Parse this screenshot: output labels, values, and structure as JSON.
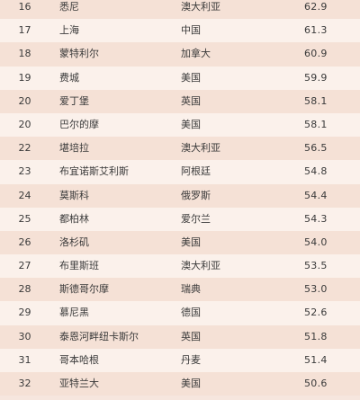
{
  "table": {
    "rows": [
      {
        "rank": "16",
        "city": "悉尼",
        "country": "澳大利亚",
        "score": "62.9"
      },
      {
        "rank": "17",
        "city": "上海",
        "country": "中国",
        "score": "61.3"
      },
      {
        "rank": "18",
        "city": "蒙特利尔",
        "country": "加拿大",
        "score": "60.9"
      },
      {
        "rank": "19",
        "city": "费城",
        "country": "美国",
        "score": "59.9"
      },
      {
        "rank": "20",
        "city": "爱丁堡",
        "country": "英国",
        "score": "58.1"
      },
      {
        "rank": "20",
        "city": "巴尔的摩",
        "country": "美国",
        "score": "58.1"
      },
      {
        "rank": "22",
        "city": "堪培拉",
        "country": "澳大利亚",
        "score": "56.5"
      },
      {
        "rank": "23",
        "city": "布宜诺斯艾利斯",
        "country": "阿根廷",
        "score": "54.8"
      },
      {
        "rank": "24",
        "city": "莫斯科",
        "country": "俄罗斯",
        "score": "54.4"
      },
      {
        "rank": "25",
        "city": "都柏林",
        "country": "爱尔兰",
        "score": "54.3"
      },
      {
        "rank": "26",
        "city": "洛杉矶",
        "country": "美国",
        "score": "54.0"
      },
      {
        "rank": "27",
        "city": "布里斯班",
        "country": "澳大利亚",
        "score": "53.5"
      },
      {
        "rank": "28",
        "city": "斯德哥尔摩",
        "country": "瑞典",
        "score": "53.0"
      },
      {
        "rank": "29",
        "city": "慕尼黑",
        "country": "德国",
        "score": "52.6"
      },
      {
        "rank": "30",
        "city": "泰恩河畔纽卡斯尔",
        "country": "英国",
        "score": "51.8"
      },
      {
        "rank": "31",
        "city": "哥本哈根",
        "country": "丹麦",
        "score": "51.4"
      },
      {
        "rank": "32",
        "city": "亚特兰大",
        "country": "美国",
        "score": "50.6"
      }
    ]
  }
}
